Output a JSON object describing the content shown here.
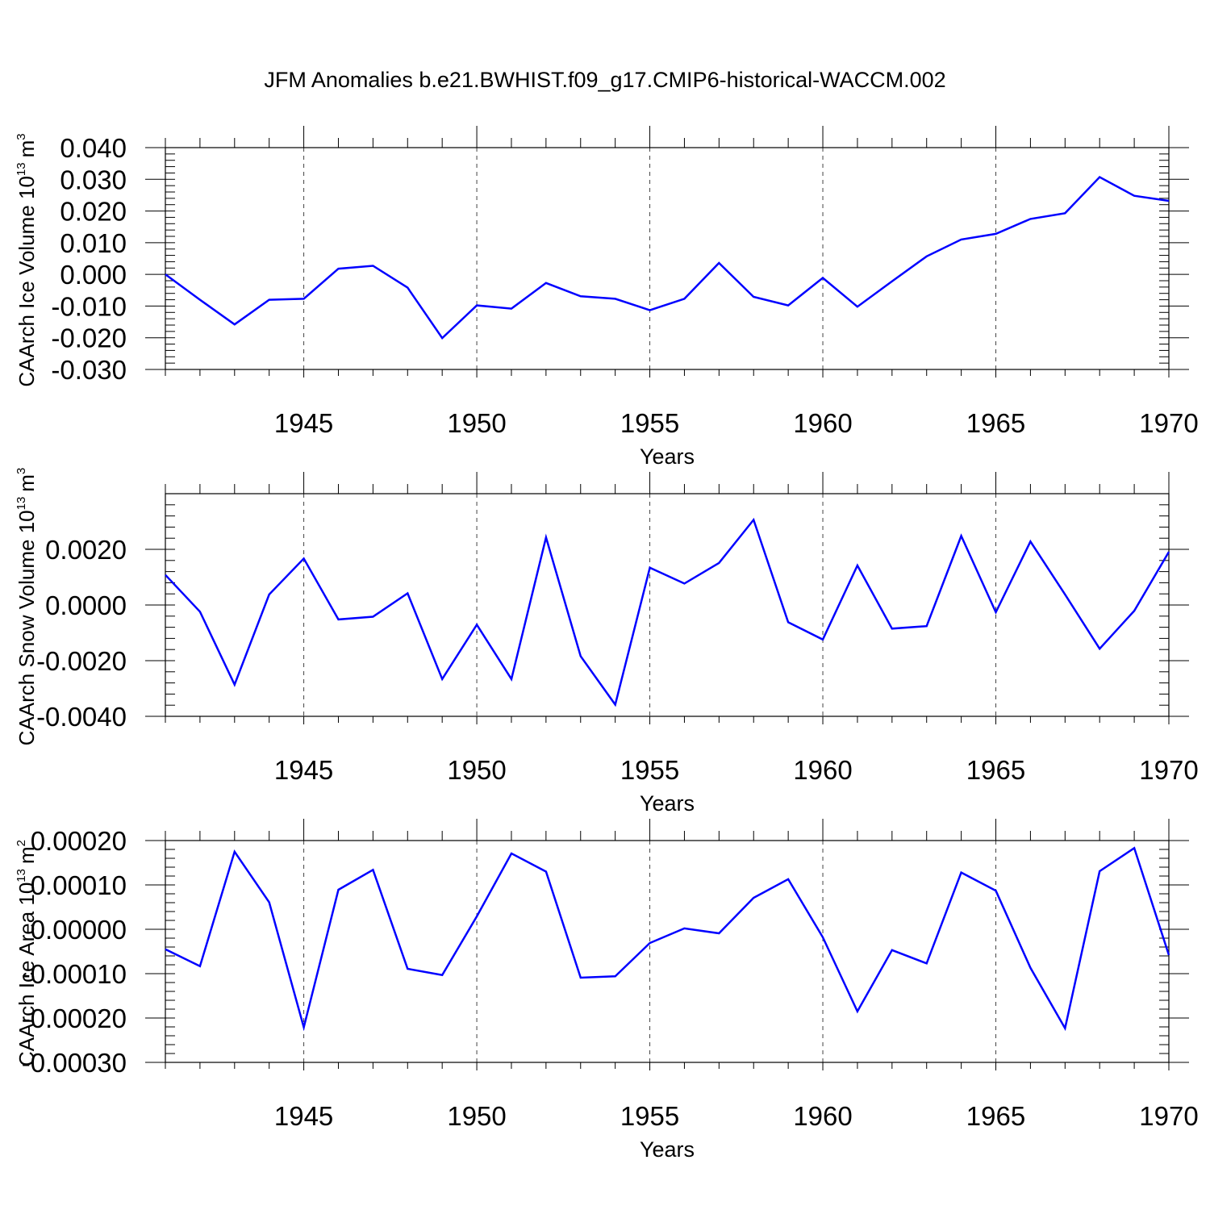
{
  "title": "JFM Anomalies b.e21.BWHIST.f09_g17.CMIP6-historical-WACCM.002",
  "chart_data": [
    {
      "type": "line",
      "ylabel": "CAArch Ice Volume 10",
      "ylabel_exp": "13",
      "ylabel_unit": "m",
      "ylabel_unit_exp": "3",
      "xlabel": "Years",
      "xlim": [
        1941,
        1970
      ],
      "ylim": [
        -0.03,
        0.04
      ],
      "yticks": [
        -0.03,
        -0.02,
        -0.01,
        0.0,
        0.01,
        0.02,
        0.03,
        0.04
      ],
      "ytick_labels": [
        "-0.030",
        "-0.020",
        "-0.010",
        "0.000",
        "0.010",
        "0.020",
        "0.030",
        "0.040"
      ],
      "yminor_step": 0.002,
      "xticks": [
        1945,
        1950,
        1955,
        1960,
        1965,
        1970
      ],
      "xtick_labels": [
        "1945",
        "1950",
        "1955",
        "1960",
        "1965",
        "1970"
      ],
      "grid": "vertical-dashed",
      "line_color": "#0000ff",
      "x": [
        1941,
        1942,
        1943,
        1944,
        1945,
        1946,
        1947,
        1948,
        1949,
        1950,
        1951,
        1952,
        1953,
        1954,
        1955,
        1956,
        1957,
        1958,
        1959,
        1960,
        1961,
        1962,
        1963,
        1964,
        1965,
        1966,
        1967,
        1968,
        1969,
        1970
      ],
      "values": [
        0.0,
        -0.008,
        -0.0158,
        -0.008,
        -0.0077,
        0.0018,
        0.0027,
        -0.0042,
        -0.0201,
        -0.0098,
        -0.0108,
        -0.0027,
        -0.0069,
        -0.0077,
        -0.0113,
        -0.0077,
        0.0036,
        -0.0071,
        -0.0098,
        -0.0011,
        -0.0102,
        -0.0022,
        0.0057,
        0.011,
        0.0128,
        0.0175,
        0.0193,
        0.0307,
        0.0248,
        0.0232
      ]
    },
    {
      "type": "line",
      "ylabel": "CAArch Snow Volume 10",
      "ylabel_exp": "13",
      "ylabel_unit": "m",
      "ylabel_unit_exp": "3",
      "xlabel": "Years",
      "xlim": [
        1941,
        1970
      ],
      "ylim": [
        -0.004,
        0.004
      ],
      "yticks": [
        -0.004,
        -0.002,
        0.0,
        0.002
      ],
      "ytick_labels": [
        "-0.0040",
        "-0.0020",
        "0.0000",
        "0.0020"
      ],
      "yminor_step": 0.0004,
      "xticks": [
        1945,
        1950,
        1955,
        1960,
        1965,
        1970
      ],
      "xtick_labels": [
        "1945",
        "1950",
        "1955",
        "1960",
        "1965",
        "1970"
      ],
      "grid": "vertical-dashed",
      "line_color": "#0000ff",
      "x": [
        1941,
        1942,
        1943,
        1944,
        1945,
        1946,
        1947,
        1948,
        1949,
        1950,
        1951,
        1952,
        1953,
        1954,
        1955,
        1956,
        1957,
        1958,
        1959,
        1960,
        1961,
        1962,
        1963,
        1964,
        1965,
        1966,
        1967,
        1968,
        1969,
        1970
      ],
      "values": [
        0.00108,
        -0.00024,
        -0.00286,
        0.00038,
        0.00167,
        -0.00052,
        -0.00042,
        0.00042,
        -0.00266,
        -0.00071,
        -0.00266,
        0.00243,
        -0.00184,
        -0.00358,
        0.00134,
        0.00077,
        0.00151,
        0.00306,
        -0.00062,
        -0.00124,
        0.00142,
        -0.00085,
        -0.00076,
        0.00248,
        -0.00026,
        0.00228,
        0.00038,
        -0.00157,
        -0.00021,
        0.00191
      ]
    },
    {
      "type": "line",
      "ylabel": "CAArch Ice Area 10",
      "ylabel_exp": "13",
      "ylabel_unit": "m",
      "ylabel_unit_exp": "2",
      "xlabel": "Years",
      "xlim": [
        1941,
        1970
      ],
      "ylim": [
        -0.0003,
        0.0002
      ],
      "yticks": [
        -0.0003,
        -0.0002,
        -0.0001,
        0.0,
        0.0001,
        0.0002
      ],
      "ytick_labels": [
        "-0.00030",
        "-0.00020",
        "-0.00010",
        "0.00000",
        "0.00010",
        "0.00020"
      ],
      "yminor_step": 2e-05,
      "xticks": [
        1945,
        1950,
        1955,
        1960,
        1965,
        1970
      ],
      "xtick_labels": [
        "1945",
        "1950",
        "1955",
        "1960",
        "1965",
        "1970"
      ],
      "grid": "vertical-dashed",
      "line_color": "#0000ff",
      "x": [
        1941,
        1942,
        1943,
        1944,
        1945,
        1946,
        1947,
        1948,
        1949,
        1950,
        1951,
        1952,
        1953,
        1954,
        1955,
        1956,
        1957,
        1958,
        1959,
        1960,
        1961,
        1962,
        1963,
        1964,
        1965,
        1966,
        1967,
        1968,
        1969,
        1970
      ],
      "values": [
        -4.5e-05,
        -8.3e-05,
        0.000175,
        6.1e-05,
        -0.000221,
        8.9e-05,
        0.000134,
        -8.9e-05,
        -0.000103,
        2.9e-05,
        0.000171,
        0.00013,
        -0.000109,
        -0.000106,
        -3.1e-05,
        2e-06,
        -9e-06,
        7.1e-05,
        0.000113,
        -1.8e-05,
        -0.000185,
        -4.7e-05,
        -7.7e-05,
        0.000128,
        8.7e-05,
        -8.7e-05,
        -0.000223,
        0.000131,
        0.000183,
        -5.8e-05
      ]
    }
  ]
}
